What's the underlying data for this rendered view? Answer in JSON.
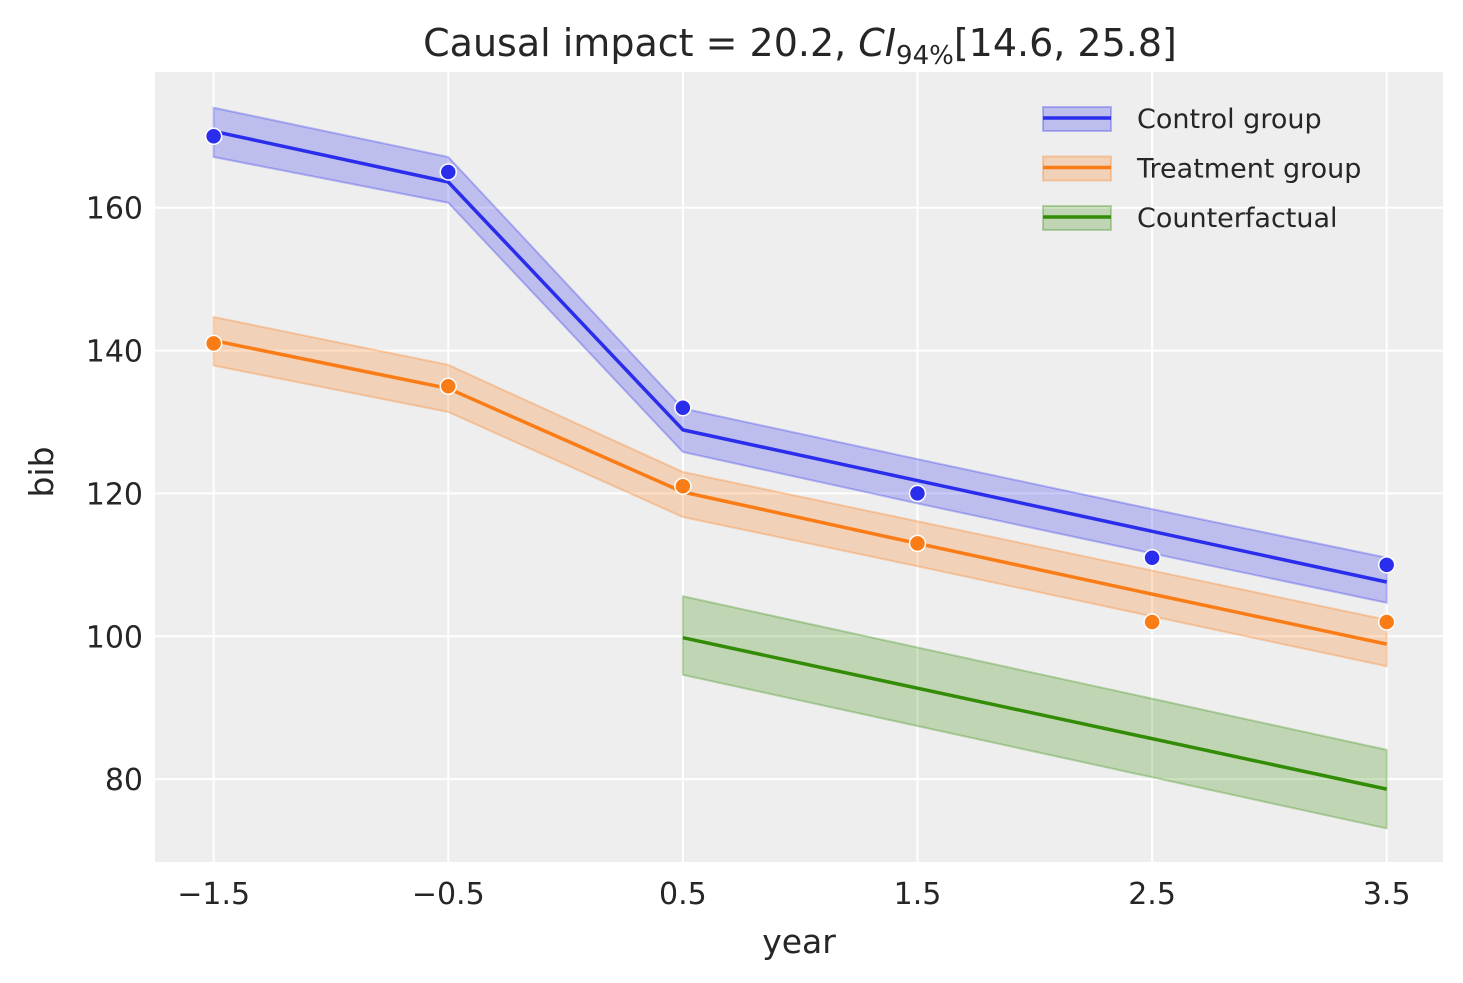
{
  "chart_data": {
    "type": "line",
    "title": {
      "prefix": "Causal impact = 20.2, ",
      "ci_symbol": "CI",
      "ci_subscript": "94%",
      "suffix": "[14.6, 25.8]"
    },
    "xlabel": "year",
    "ylabel": "bib",
    "xlim": [
      -1.75,
      3.74
    ],
    "ylim": [
      68.4,
      179.0
    ],
    "xticks": [
      -1.5,
      -0.5,
      0.5,
      1.5,
      2.5,
      3.5
    ],
    "xtick_labels": [
      "−1.5",
      "−0.5",
      "0.5",
      "1.5",
      "2.5",
      "3.5"
    ],
    "yticks": [
      80,
      100,
      120,
      140,
      160
    ],
    "ytick_labels": [
      "80",
      "100",
      "120",
      "140",
      "160"
    ],
    "grid": true,
    "legend_position": "top-right",
    "background": "#eeeeee",
    "series": [
      {
        "name": "Control group",
        "color": "#2a2eec",
        "x": [
          -1.5,
          -0.5,
          0.5,
          1.5,
          2.5,
          3.5
        ],
        "observed": [
          170,
          165,
          132,
          120,
          111,
          110
        ],
        "fitted": [
          170.7,
          163.6,
          128.9,
          121.8,
          114.7,
          107.6
        ],
        "hdi_lower": [
          167.1,
          160.7,
          125.8,
          118.6,
          111.6,
          104.7
        ],
        "hdi_upper": [
          174.0,
          167.1,
          131.9,
          124.8,
          117.8,
          111.0
        ]
      },
      {
        "name": "Treatment group",
        "color": "#fa7c17",
        "x": [
          -1.5,
          -0.5,
          0.5,
          1.5,
          2.5,
          3.5
        ],
        "observed": [
          141,
          135,
          121,
          113,
          102,
          102
        ],
        "fitted": [
          141.4,
          134.7,
          120.2,
          113.0,
          105.9,
          98.9
        ],
        "hdi_lower": [
          137.9,
          131.4,
          116.7,
          109.8,
          102.8,
          95.8
        ],
        "hdi_upper": [
          144.7,
          138.0,
          123.0,
          116.1,
          109.2,
          102.3
        ]
      },
      {
        "name": "Counterfactual",
        "color": "#328c06",
        "x": [
          0.5,
          3.5
        ],
        "observed": [],
        "fitted": [
          99.8,
          78.6
        ],
        "hdi_lower": [
          94.6,
          73.1
        ],
        "hdi_upper": [
          105.6,
          84.1
        ]
      }
    ]
  }
}
